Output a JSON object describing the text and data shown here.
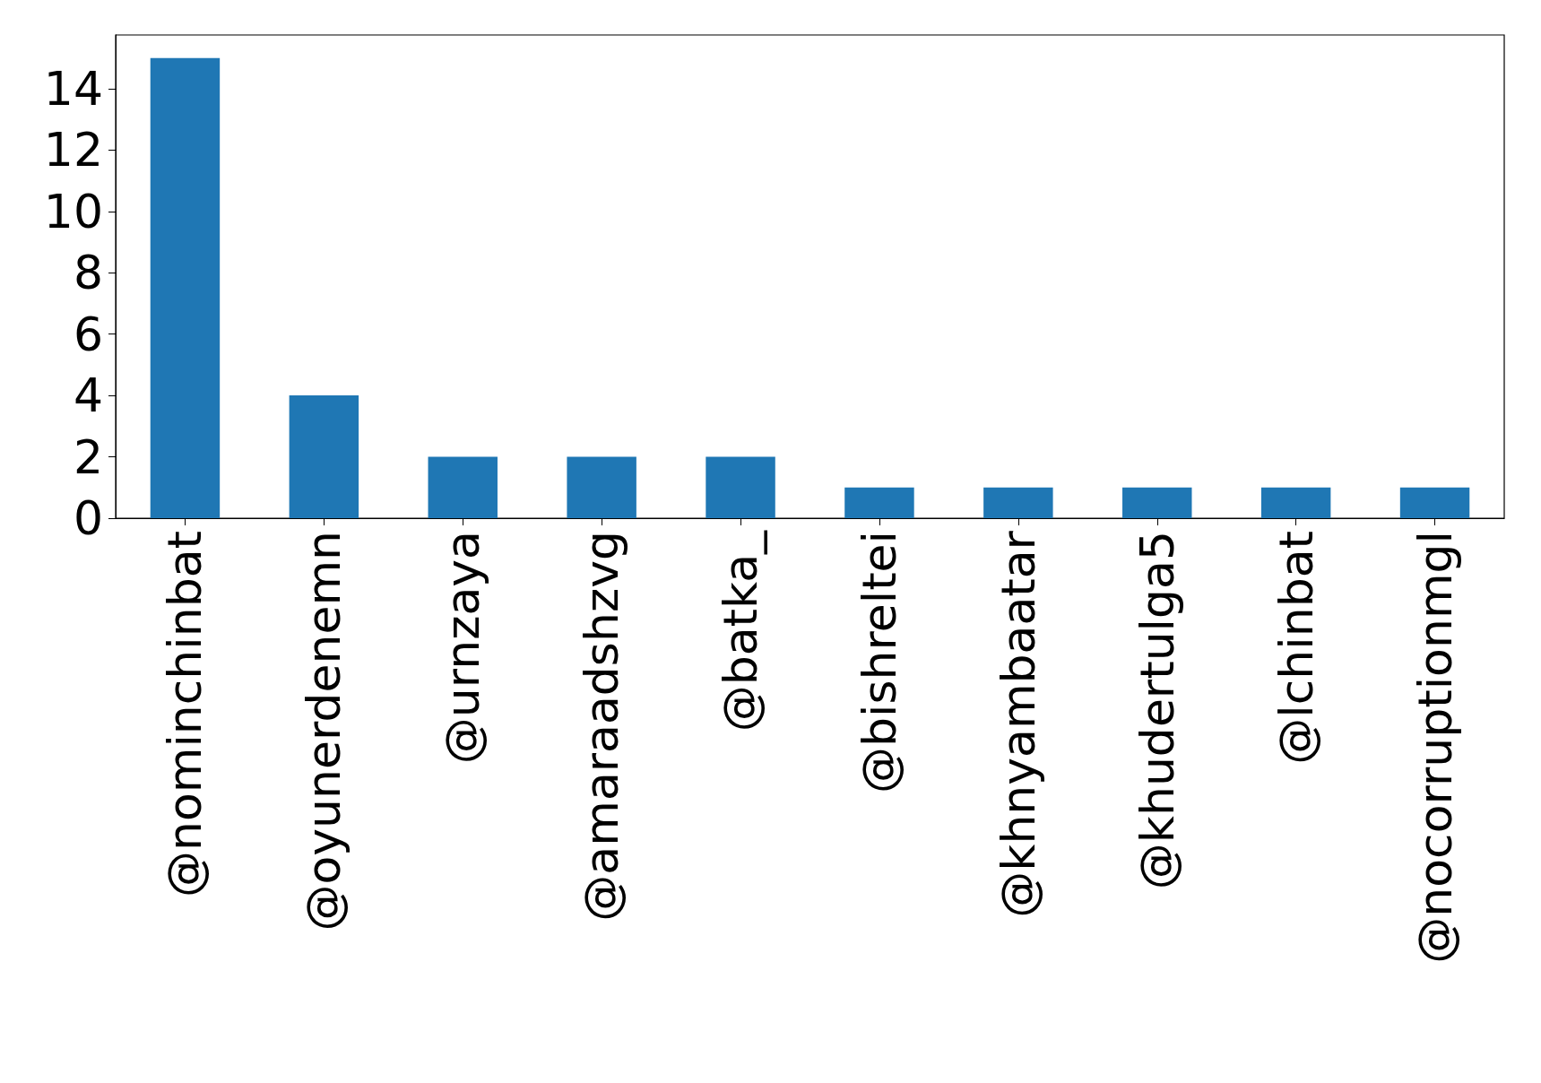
{
  "chart_data": {
    "type": "bar",
    "categories": [
      "@nominchinbat",
      "@oyunerdenemn",
      "@urnzaya",
      "@amaraadshzvg",
      "@batka_",
      "@bishreltei",
      "@khnyambaatar",
      "@khudertulga5",
      "@lchinbat",
      "@nocorruptionmgl"
    ],
    "values": [
      15,
      4,
      2,
      2,
      2,
      1,
      1,
      1,
      1,
      1
    ],
    "color": "#1f77b4",
    "ylim": [
      0,
      15.75
    ],
    "yticks": [
      0,
      2,
      4,
      6,
      8,
      10,
      12,
      14
    ],
    "grid": false
  }
}
